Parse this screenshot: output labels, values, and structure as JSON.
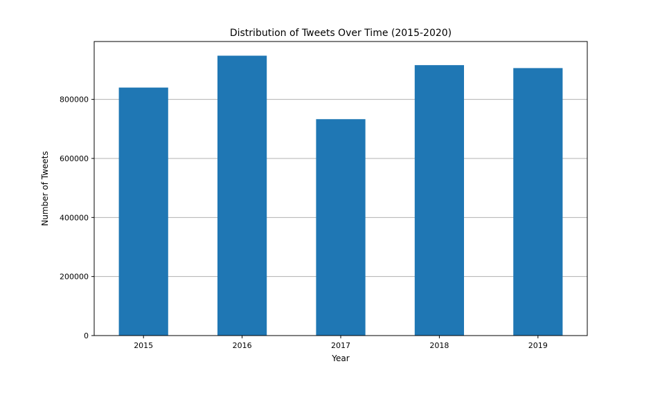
{
  "chart_data": {
    "type": "bar",
    "title": "Distribution of Tweets Over Time (2015-2020)",
    "xlabel": "Year",
    "ylabel": "Number of Tweets",
    "categories": [
      "2015",
      "2016",
      "2017",
      "2018",
      "2019"
    ],
    "values": [
      840000,
      948000,
      733000,
      916000,
      906000
    ],
    "ylim": [
      0,
      996000
    ],
    "yticks": [
      0,
      200000,
      400000,
      600000,
      800000
    ],
    "ytick_labels": [
      "0",
      "200000",
      "400000",
      "600000",
      "800000"
    ],
    "grid": "horizontal",
    "legend": "none",
    "bar_color": "#1f77b4",
    "grid_color": "#b0b0b0"
  }
}
